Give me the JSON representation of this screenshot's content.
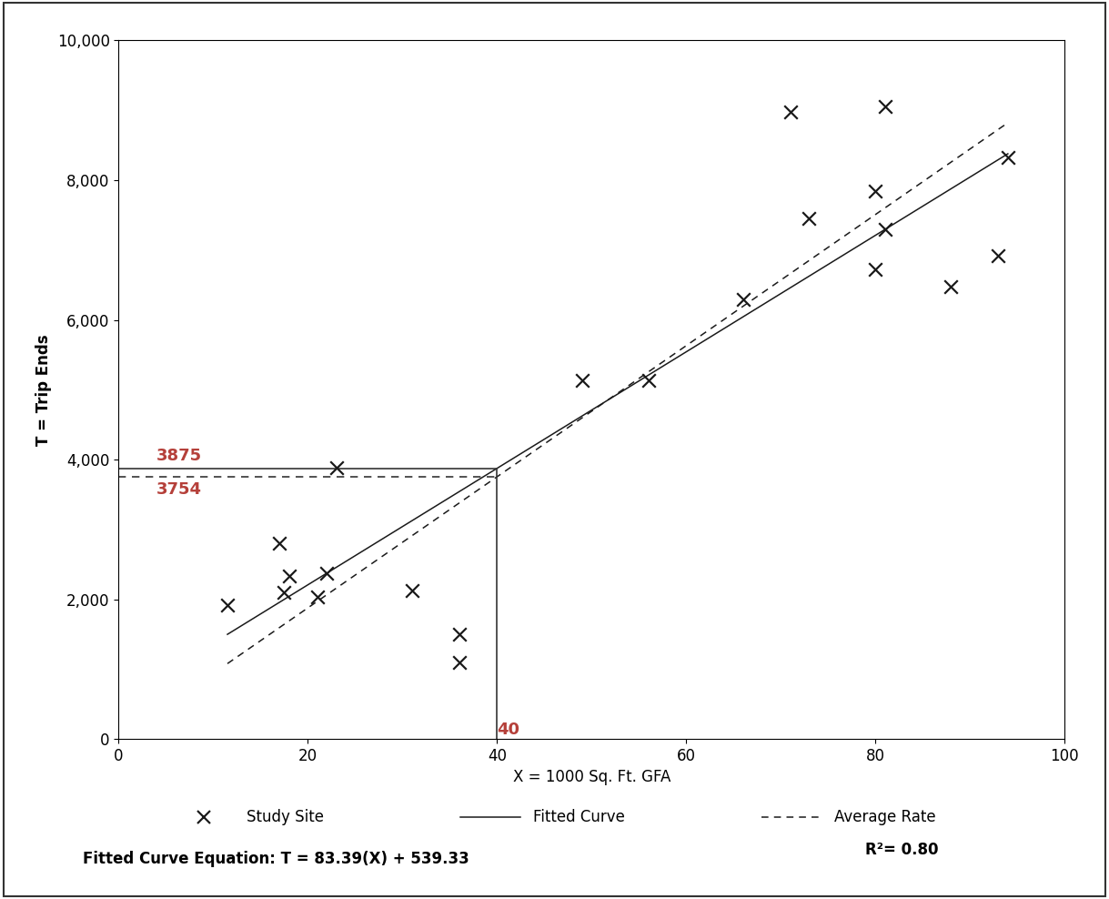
{
  "chart_data": {
    "type": "scatter",
    "x_label": "X = 1000 Sq. Ft. GFA",
    "y_label": "T = Trip Ends",
    "xlim": [
      0,
      100
    ],
    "xticks": [
      0,
      20,
      40,
      60,
      80,
      100
    ],
    "ylim": [
      0,
      10000
    ],
    "yticks": [
      0,
      {
        "value": 2000,
        "label": "2,000"
      },
      {
        "value": 4000,
        "label": "4,000"
      },
      {
        "value": 6000,
        "label": "6,000"
      },
      {
        "value": 8000,
        "label": "8,000"
      },
      {
        "value": 10000,
        "label": "10,000"
      }
    ],
    "grid": false,
    "legend": "bottom",
    "series": [
      {
        "name": "Study Site",
        "type": "scatter",
        "marker": "x",
        "color": "#1a1a1a",
        "x": [
          11.5,
          17,
          17.5,
          18,
          21,
          22,
          23,
          31,
          36,
          36,
          49,
          56,
          66,
          71,
          73,
          80,
          80,
          81,
          81,
          88,
          93,
          94
        ],
        "values": [
          1920,
          2800,
          2100,
          2330,
          2030,
          2370,
          3880,
          2130,
          1500,
          1100,
          5130,
          5130,
          6300,
          8980,
          7450,
          7850,
          6720,
          9050,
          7300,
          6480,
          6920,
          8330
        ]
      },
      {
        "name": "Fitted Curve",
        "type": "line",
        "line_style": "solid",
        "color": "#1a1a1a",
        "x": [
          11.5,
          94
        ],
        "values": [
          1498,
          8378
        ]
      },
      {
        "name": "Average Rate",
        "type": "line",
        "line_style": "dashed",
        "color": "#1a1a1a",
        "x": [
          11.5,
          94
        ],
        "values": [
          1079,
          8822
        ]
      }
    ],
    "reference": {
      "x": 40,
      "fitted": 3875,
      "average": 3754,
      "color": "#b5403a"
    },
    "equation": "Fitted Curve Equation: T = 83.39(X) + 539.33",
    "r_squared": "R²= 0.80"
  }
}
